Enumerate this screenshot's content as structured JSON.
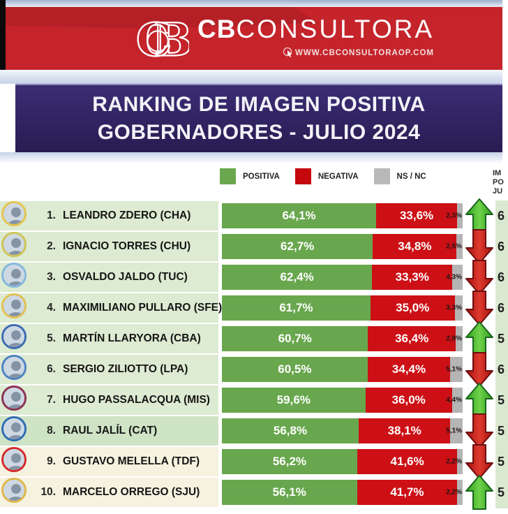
{
  "header": {
    "brand_bold": "CB",
    "brand_rest": "CONSULTORA",
    "website": "WWW.CBCONSULTORAOP.COM",
    "banner_color": "#c5242b"
  },
  "title": {
    "line1": "RANKING DE IMAGEN POSITIVA",
    "line2": "GOBERNADORES - JULIO 2024",
    "banner_color": "#2e2263"
  },
  "legend": {
    "items": [
      {
        "label": "POSITIVA",
        "color": "#6aa74e"
      },
      {
        "label": "NEGATIVA",
        "color": "#c5070e"
      },
      {
        "label": "NS / NC",
        "color": "#b9b9b9"
      }
    ]
  },
  "side_column": {
    "header_fragments": [
      "IM",
      "PO",
      "JU"
    ],
    "bg_color": "#d9e9d0"
  },
  "bar_colors": {
    "positive": "#69a74e",
    "negative": "#cc1016",
    "nsnc": "#b5b5b5"
  },
  "trend_colors": {
    "up": {
      "fill": "#45b02b",
      "stroke": "#17641b"
    },
    "down": {
      "fill": "#c41414",
      "stroke": "#6e0d0d"
    }
  },
  "table": {
    "rows": [
      {
        "rank": "1.",
        "name": "LEANDRO ZDERO (CHA)",
        "positive": "64,1%",
        "negative": "33,6%",
        "nsnc": "2,3%",
        "pos_val": 64.1,
        "neg_val": 33.6,
        "ns_val": 2.3,
        "trend": "up",
        "side_value": "6",
        "ring": "#e6c44d",
        "row_bg": "#dcebd2"
      },
      {
        "rank": "2.",
        "name": "IGNACIO TORRES (CHU)",
        "positive": "62,7%",
        "negative": "34,8%",
        "nsnc": "2,5%",
        "pos_val": 62.7,
        "neg_val": 34.8,
        "ns_val": 2.5,
        "trend": "down",
        "side_value": "6",
        "ring": "#cfc355",
        "row_bg": "#dcebd2"
      },
      {
        "rank": "3.",
        "name": "OSVALDO JALDO (TUC)",
        "positive": "62,4%",
        "negative": "33,3%",
        "nsnc": "4,3%",
        "pos_val": 62.4,
        "neg_val": 33.3,
        "ns_val": 4.3,
        "trend": "down",
        "side_value": "6",
        "ring": "#85b8dd",
        "row_bg": "#dcebd2"
      },
      {
        "rank": "4.",
        "name": "MAXIMILIANO PULLARO (SFE)",
        "positive": "61,7%",
        "negative": "35,0%",
        "nsnc": "3,3%",
        "pos_val": 61.7,
        "neg_val": 35.0,
        "ns_val": 3.3,
        "trend": "down",
        "side_value": "6",
        "ring": "#e2c052",
        "row_bg": "#dcebd2"
      },
      {
        "rank": "5.",
        "name": "MARTÍN LLARYORA (CBA)",
        "positive": "60,7%",
        "negative": "36,4%",
        "nsnc": "2,9%",
        "pos_val": 60.7,
        "neg_val": 36.4,
        "ns_val": 2.9,
        "trend": "up",
        "side_value": "5",
        "ring": "#3c6cb4",
        "row_bg": "#dcebd2"
      },
      {
        "rank": "6.",
        "name": "SERGIO ZILIOTTO (LPA)",
        "positive": "60,5%",
        "negative": "34,4%",
        "nsnc": "5,1%",
        "pos_val": 60.5,
        "neg_val": 34.4,
        "ns_val": 5.1,
        "trend": "down",
        "side_value": "6",
        "ring": "#4d82c4",
        "row_bg": "#dcebd2"
      },
      {
        "rank": "7.",
        "name": "HUGO PASSALACQUA (MIS)",
        "positive": "59,6%",
        "negative": "36,0%",
        "nsnc": "4,4%",
        "pos_val": 59.6,
        "neg_val": 36.0,
        "ns_val": 4.4,
        "trend": "up",
        "side_value": "5",
        "ring": "#8c3050",
        "row_bg": "#dcebd2"
      },
      {
        "rank": "8.",
        "name": "RAUL JALÍL (CAT)",
        "positive": "56,8%",
        "negative": "38,1%",
        "nsnc": "5,1%",
        "pos_val": 56.8,
        "neg_val": 38.1,
        "ns_val": 5.1,
        "trend": "down",
        "side_value": "5",
        "ring": "#2f6cb3",
        "row_bg": "#cfe3c5"
      },
      {
        "rank": "9.",
        "name": "GUSTAVO MELELLA (TDF)",
        "positive": "56,2%",
        "negative": "41,6%",
        "nsnc": "2,2%",
        "pos_val": 56.2,
        "neg_val": 41.6,
        "ns_val": 2.2,
        "trend": "down",
        "side_value": "5",
        "ring": "#d42b2b",
        "row_bg": "#f6f2e0"
      },
      {
        "rank": "10.",
        "name": "MARCELO ORREGO (SJU)",
        "positive": "56,1%",
        "negative": "41,7%",
        "nsnc": "2,2%",
        "pos_val": 56.1,
        "neg_val": 41.7,
        "ns_val": 2.2,
        "trend": "up",
        "side_value": "5",
        "ring": "#e0b84a",
        "row_bg": "#f6f2e0"
      }
    ]
  },
  "chart_data": {
    "type": "bar",
    "subtype": "stacked-horizontal",
    "title": "RANKING DE IMAGEN POSITIVA GOBERNADORES - JULIO 2024",
    "unit": "%",
    "categories": [
      "LEANDRO ZDERO (CHA)",
      "IGNACIO TORRES (CHU)",
      "OSVALDO JALDO (TUC)",
      "MAXIMILIANO PULLARO (SFE)",
      "MARTÍN LLARYORA (CBA)",
      "SERGIO ZILIOTTO (LPA)",
      "HUGO PASSALACQUA (MIS)",
      "RAUL JALÍL (CAT)",
      "GUSTAVO MELELLA (TDF)",
      "MARCELO ORREGO (SJU)"
    ],
    "series": [
      {
        "name": "POSITIVA",
        "color": "#69a74e",
        "values": [
          64.1,
          62.7,
          62.4,
          61.7,
          60.7,
          60.5,
          59.6,
          56.8,
          56.2,
          56.1
        ]
      },
      {
        "name": "NEGATIVA",
        "color": "#cc1016",
        "values": [
          33.6,
          34.8,
          33.3,
          35.0,
          36.4,
          34.4,
          36.0,
          38.1,
          41.6,
          41.7
        ]
      },
      {
        "name": "NS / NC",
        "color": "#b5b5b5",
        "values": [
          2.3,
          2.5,
          4.3,
          3.3,
          2.9,
          5.1,
          4.4,
          5.1,
          2.2,
          2.2
        ]
      }
    ],
    "trend_vs_previous": [
      "up",
      "down",
      "down",
      "down",
      "up",
      "down",
      "up",
      "down",
      "down",
      "up"
    ],
    "xlim": [
      0,
      100
    ],
    "legend_position": "top",
    "grid": false
  }
}
